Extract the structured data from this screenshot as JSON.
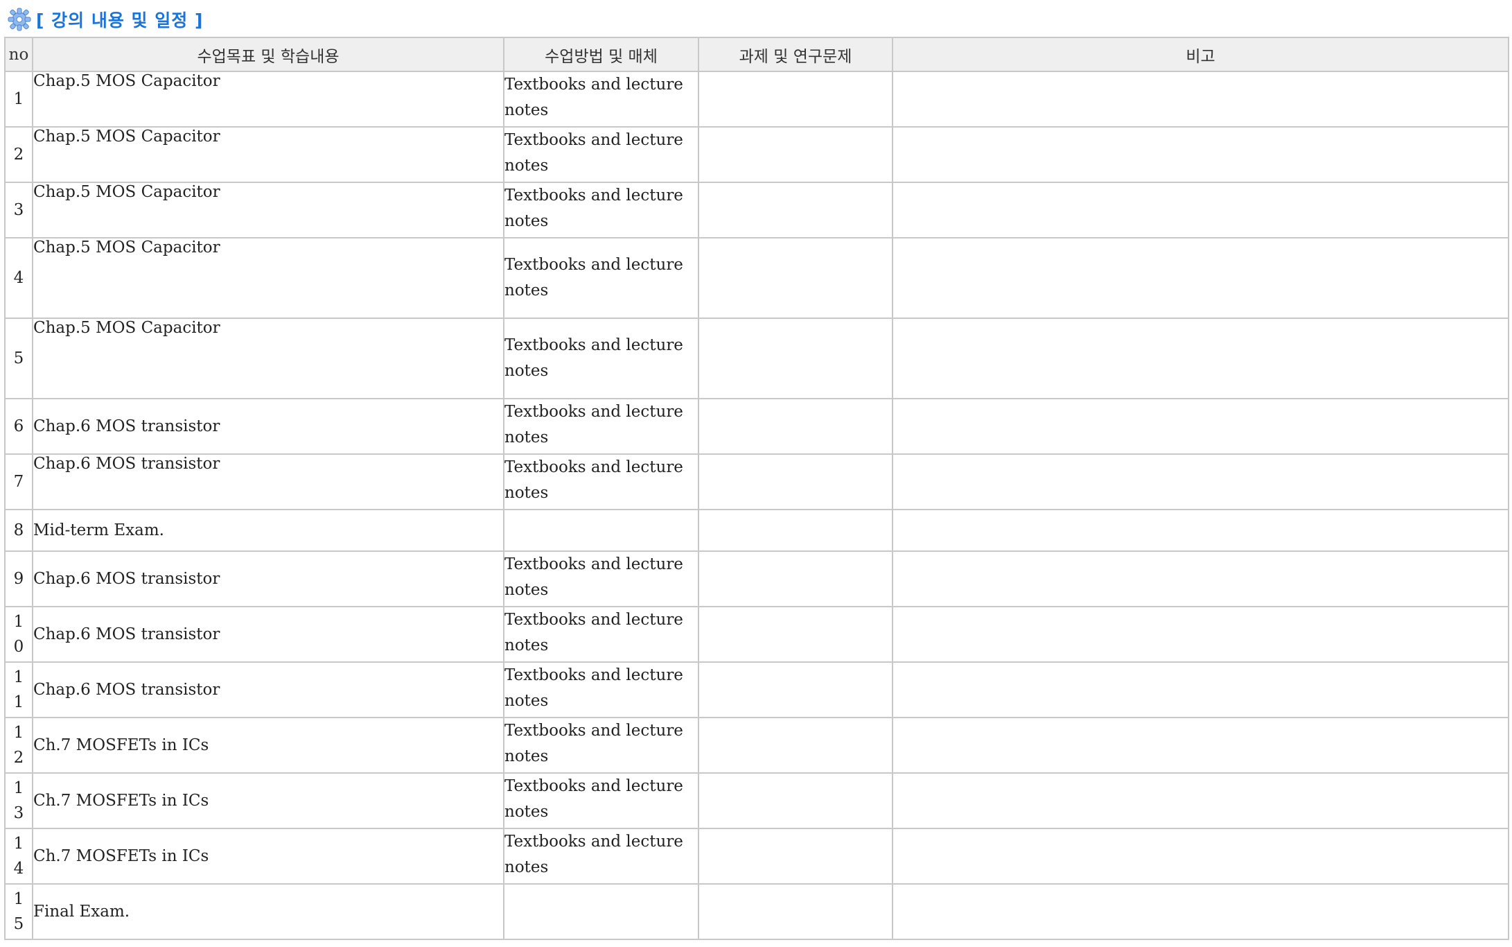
{
  "section": {
    "icon": "gear-icon",
    "title": "[ 강의 내용 및 일정 ]",
    "title_color": "#1a73d9"
  },
  "table": {
    "headers": {
      "no": "no",
      "content": "수업목표 및 학습내용",
      "method": "수업방법 및 매체",
      "assignment": "과제 및 연구문제",
      "remarks": "비고"
    },
    "rows": [
      {
        "no": "1",
        "content": "Chap.5 MOS Capacitor",
        "method": "Textbooks and lecture notes",
        "assignment": "",
        "remarks": ""
      },
      {
        "no": "2",
        "content": "Chap.5 MOS Capacitor",
        "method": "Textbooks and lecture notes",
        "assignment": "",
        "remarks": ""
      },
      {
        "no": "3",
        "content": "Chap.5 MOS Capacitor",
        "method": "Textbooks and lecture notes",
        "assignment": "",
        "remarks": ""
      },
      {
        "no": "4",
        "content": "Chap.5 MOS Capacitor",
        "method": "Textbooks and lecture notes",
        "assignment": "",
        "remarks": ""
      },
      {
        "no": "5",
        "content": "Chap.5 MOS Capacitor",
        "method": "Textbooks and lecture notes",
        "assignment": "",
        "remarks": ""
      },
      {
        "no": "6",
        "content": "Chap.6 MOS transistor",
        "method": "Textbooks and lecture notes",
        "assignment": "",
        "remarks": ""
      },
      {
        "no": "7",
        "content": "Chap.6 MOS transistor",
        "method": "Textbooks and lecture notes",
        "assignment": "",
        "remarks": ""
      },
      {
        "no": "8",
        "content": "Mid-term Exam.",
        "method": "",
        "assignment": "",
        "remarks": ""
      },
      {
        "no": "9",
        "content": "Chap.6 MOS transistor",
        "method": "Textbooks and lecture notes",
        "assignment": "",
        "remarks": ""
      },
      {
        "no": "10",
        "content": "Chap.6 MOS transistor",
        "method": "Textbooks and lecture notes",
        "assignment": "",
        "remarks": ""
      },
      {
        "no": "11",
        "content": "Chap.6 MOS transistor",
        "method": "Textbooks and lecture notes",
        "assignment": "",
        "remarks": ""
      },
      {
        "no": "12",
        "content": "Ch.7 MOSFETs in ICs",
        "method": "Textbooks and lecture notes",
        "assignment": "",
        "remarks": ""
      },
      {
        "no": "13",
        "content": "Ch.7 MOSFETs in ICs",
        "method": "Textbooks and lecture notes",
        "assignment": "",
        "remarks": ""
      },
      {
        "no": "14",
        "content": "Ch.7 MOSFETs in ICs",
        "method": "Textbooks and lecture notes",
        "assignment": "",
        "remarks": ""
      },
      {
        "no": "15",
        "content": "Final Exam.",
        "method": "",
        "assignment": "",
        "remarks": ""
      }
    ]
  }
}
